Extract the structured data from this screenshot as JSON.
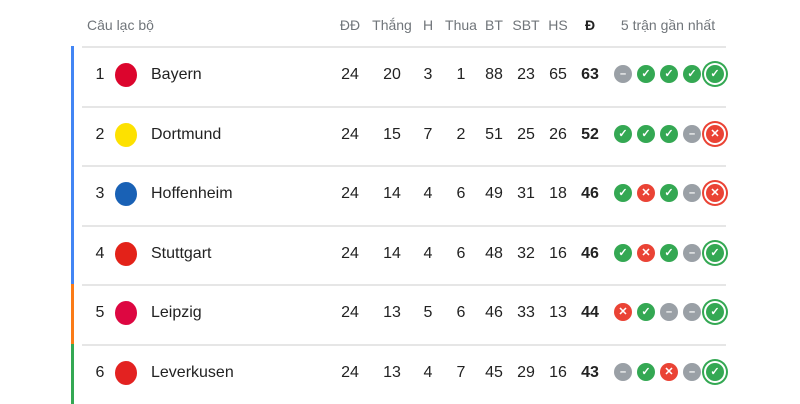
{
  "header": {
    "club": "Câu lạc bộ",
    "played": "ĐĐ",
    "won": "Thắng",
    "drawn": "H",
    "lost": "Thua",
    "gf": "BT",
    "ga": "SBT",
    "gd": "HS",
    "points": "Đ",
    "form": "5 trận gần nhất"
  },
  "colors": {
    "win": "#34a853",
    "loss": "#ea4335",
    "draw": "#9aa0a6",
    "champions_league": "#4285f4",
    "europa_league": "#fa7b17",
    "conference_league": "#34a853"
  },
  "rows": [
    {
      "pos": "1",
      "club": "Bayern",
      "logo": "bayern-logo",
      "zone": "#4285f4",
      "played": "24",
      "won": "20",
      "drawn": "3",
      "lost": "1",
      "gf": "88",
      "ga": "23",
      "gd": "65",
      "points": "63",
      "form": [
        "D",
        "W",
        "W",
        "W",
        "W"
      ]
    },
    {
      "pos": "2",
      "club": "Dortmund",
      "logo": "dortmund-logo",
      "zone": "#4285f4",
      "played": "24",
      "won": "15",
      "drawn": "7",
      "lost": "2",
      "gf": "51",
      "ga": "25",
      "gd": "26",
      "points": "52",
      "form": [
        "W",
        "W",
        "W",
        "D",
        "L"
      ]
    },
    {
      "pos": "3",
      "club": "Hoffenheim",
      "logo": "hoffenheim-logo",
      "zone": "#4285f4",
      "played": "24",
      "won": "14",
      "drawn": "4",
      "lost": "6",
      "gf": "49",
      "ga": "31",
      "gd": "18",
      "points": "46",
      "form": [
        "W",
        "L",
        "W",
        "D",
        "L"
      ]
    },
    {
      "pos": "4",
      "club": "Stuttgart",
      "logo": "stuttgart-logo",
      "zone": "#4285f4",
      "played": "24",
      "won": "14",
      "drawn": "4",
      "lost": "6",
      "gf": "48",
      "ga": "32",
      "gd": "16",
      "points": "46",
      "form": [
        "W",
        "L",
        "W",
        "D",
        "W"
      ]
    },
    {
      "pos": "5",
      "club": "Leipzig",
      "logo": "leipzig-logo",
      "zone": "#fa7b17",
      "played": "24",
      "won": "13",
      "drawn": "5",
      "lost": "6",
      "gf": "46",
      "ga": "33",
      "gd": "13",
      "points": "44",
      "form": [
        "L",
        "W",
        "D",
        "D",
        "W"
      ]
    },
    {
      "pos": "6",
      "club": "Leverkusen",
      "logo": "leverkusen-logo",
      "zone": "#34a853",
      "played": "24",
      "won": "13",
      "drawn": "4",
      "lost": "7",
      "gf": "45",
      "ga": "29",
      "gd": "16",
      "points": "43",
      "form": [
        "D",
        "W",
        "L",
        "D",
        "W"
      ]
    }
  ]
}
